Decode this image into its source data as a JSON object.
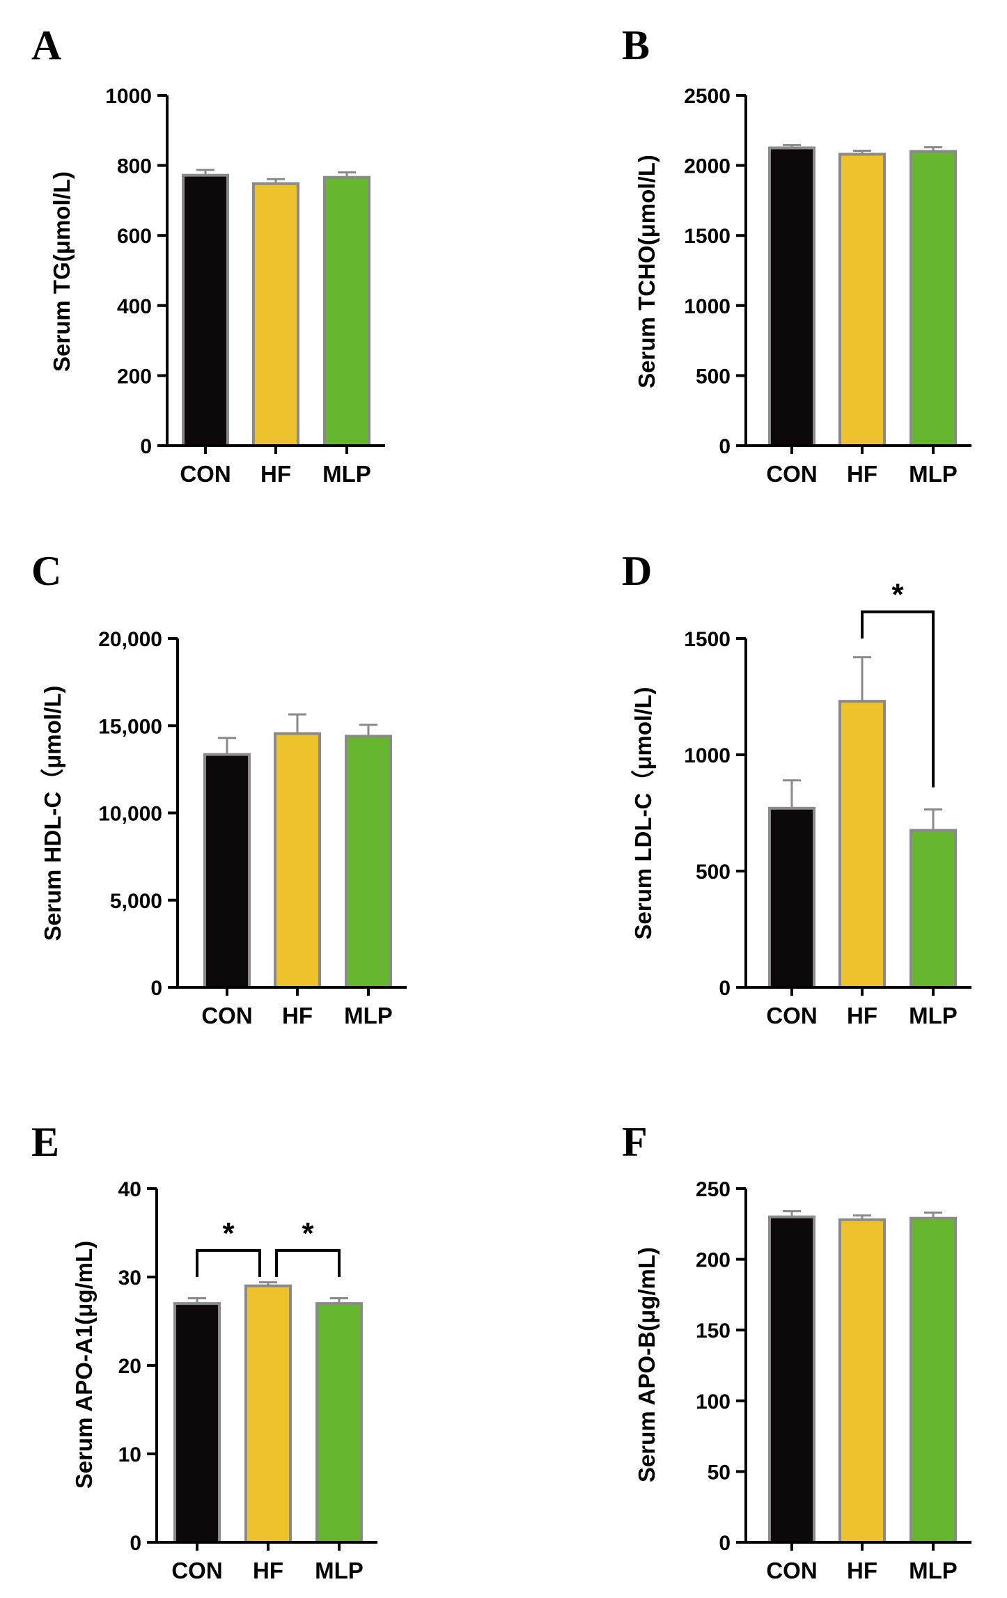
{
  "colors": {
    "CON": "#0d0809",
    "HF": "#eec22b",
    "MLP": "#67b630",
    "outline": "#8a8a8a",
    "axis": "#000000"
  },
  "chart_data": [
    {
      "panel": "A",
      "type": "bar",
      "categories": [
        "CON",
        "HF",
        "MLP"
      ],
      "values": [
        772,
        748,
        766
      ],
      "errors": [
        15,
        13,
        14
      ],
      "ylabel": "Serum TG(μmol/L)",
      "ylim": [
        0,
        1000
      ],
      "yticks": [
        0,
        200,
        400,
        600,
        800,
        1000
      ],
      "ytick_labels": [
        "0",
        "200",
        "400",
        "600",
        "800",
        "1000"
      ],
      "significance": []
    },
    {
      "panel": "B",
      "type": "bar",
      "categories": [
        "CON",
        "HF",
        "MLP"
      ],
      "values": [
        2125,
        2080,
        2100
      ],
      "errors": [
        20,
        25,
        30
      ],
      "ylabel": "Serum TCHO(μmol/L)",
      "ylim": [
        0,
        2500
      ],
      "yticks": [
        0,
        500,
        1000,
        1500,
        2000,
        2500
      ],
      "ytick_labels": [
        "0",
        "500",
        "1000",
        "1500",
        "2000",
        "2500"
      ],
      "significance": []
    },
    {
      "panel": "C",
      "type": "bar",
      "categories": [
        "CON",
        "HF",
        "MLP"
      ],
      "values": [
        13350,
        14550,
        14400
      ],
      "errors": [
        950,
        1100,
        650
      ],
      "ylabel": "Serum HDL-C（μmol/L)",
      "ylim": [
        0,
        20000
      ],
      "yticks": [
        0,
        5000,
        10000,
        15000,
        20000
      ],
      "ytick_labels": [
        "0",
        "5,000",
        "10,000",
        "15,000",
        "20,000"
      ],
      "significance": []
    },
    {
      "panel": "D",
      "type": "bar",
      "categories": [
        "CON",
        "HF",
        "MLP"
      ],
      "values": [
        770,
        1230,
        675
      ],
      "errors": [
        120,
        190,
        90
      ],
      "ylabel": "Serum LDL-C（μmol/L)",
      "ylim": [
        0,
        1500
      ],
      "yticks": [
        0,
        500,
        1000,
        1500
      ],
      "ytick_labels": [
        "0",
        "500",
        "1000",
        "1500"
      ],
      "significance": [
        {
          "from": 1,
          "to": 2,
          "label": "*",
          "bracket_value": 1615,
          "left_end": 1500,
          "right_end": 860
        }
      ]
    },
    {
      "panel": "E",
      "type": "bar",
      "categories": [
        "CON",
        "HF",
        "MLP"
      ],
      "values": [
        27.0,
        29.0,
        27.0
      ],
      "errors": [
        0.6,
        0.4,
        0.6
      ],
      "ylabel": "Serum APO-A1(μg/mL)",
      "ylim": [
        0,
        40
      ],
      "yticks": [
        0,
        10,
        20,
        30,
        40
      ],
      "ytick_labels": [
        "0",
        "10",
        "20",
        "30",
        "40"
      ],
      "significance": [
        {
          "from": 0,
          "to": 1,
          "label": "*",
          "bracket_value": 33,
          "left_end": 30,
          "right_end": 30
        },
        {
          "from": 1,
          "to": 2,
          "label": "*",
          "bracket_value": 33,
          "left_end": 30,
          "right_end": 30
        }
      ]
    },
    {
      "panel": "F",
      "type": "bar",
      "categories": [
        "CON",
        "HF",
        "MLP"
      ],
      "values": [
        230,
        228,
        229
      ],
      "errors": [
        4,
        3,
        4
      ],
      "ylabel": "Serum APO-B(μg/mL)",
      "ylim": [
        0,
        250
      ],
      "yticks": [
        0,
        50,
        100,
        150,
        200,
        250
      ],
      "ytick_labels": [
        "0",
        "50",
        "100",
        "150",
        "200",
        "250"
      ],
      "significance": []
    }
  ]
}
